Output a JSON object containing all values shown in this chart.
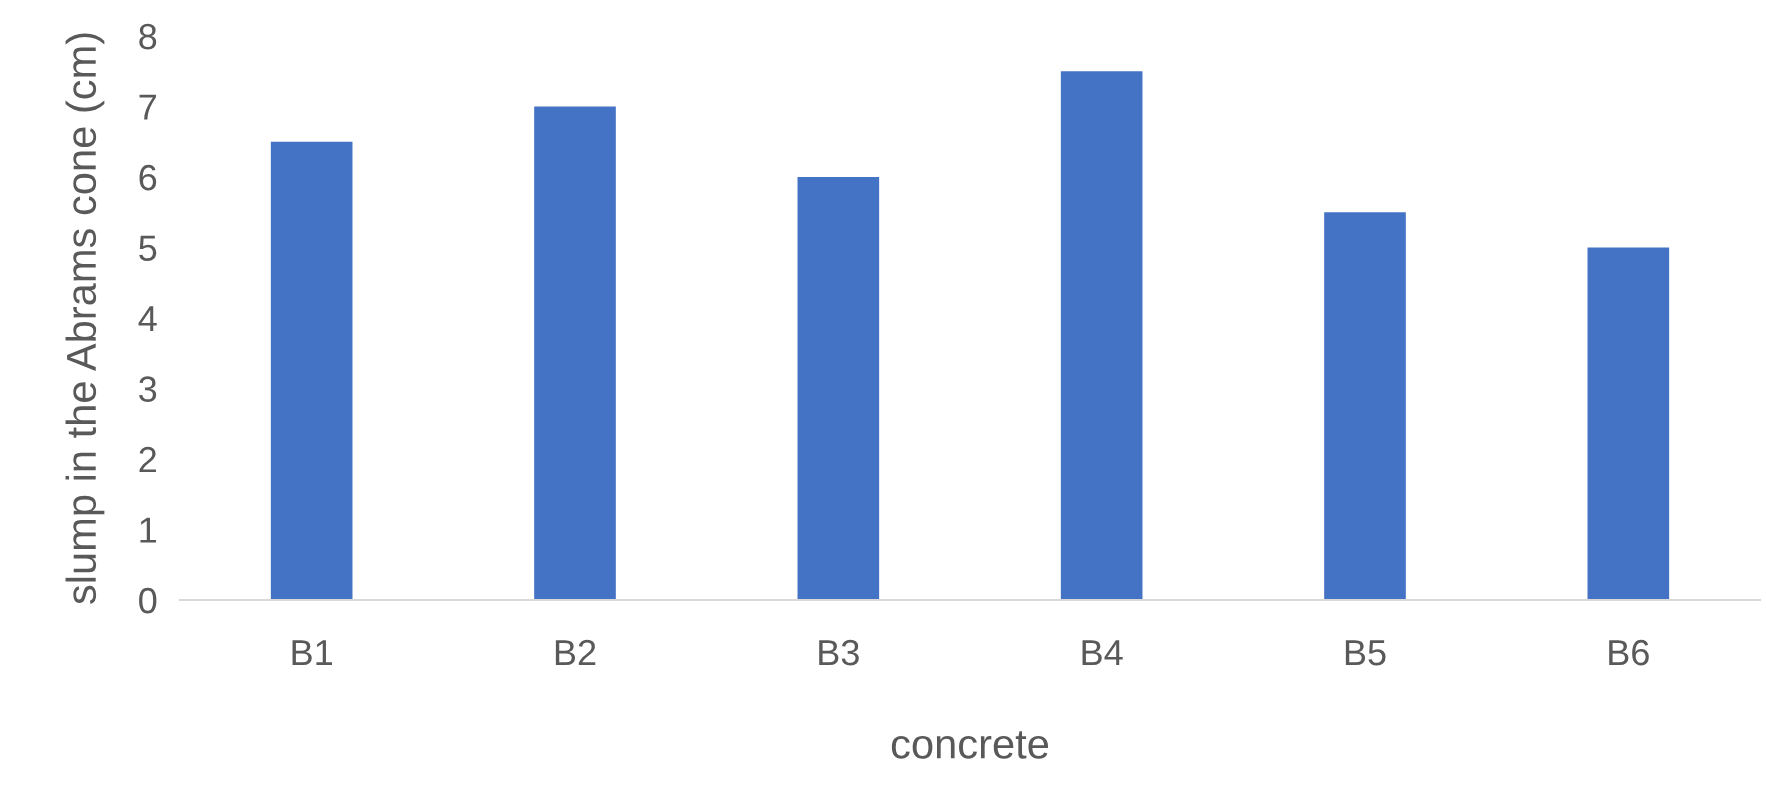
{
  "chart_data": {
    "type": "bar",
    "xlabel": "concrete",
    "ylabel": "slump in the Abrams cone (cm)",
    "categories": [
      "B1",
      "B2",
      "B3",
      "B4",
      "B5",
      "B6"
    ],
    "values": [
      6.5,
      7,
      6,
      7.5,
      5.5,
      5
    ],
    "color": "#4472c4",
    "ylim": [
      0,
      8
    ],
    "yticks": [
      0,
      1,
      2,
      3,
      4,
      5,
      6,
      7,
      8
    ],
    "grid": false,
    "legend": false
  }
}
